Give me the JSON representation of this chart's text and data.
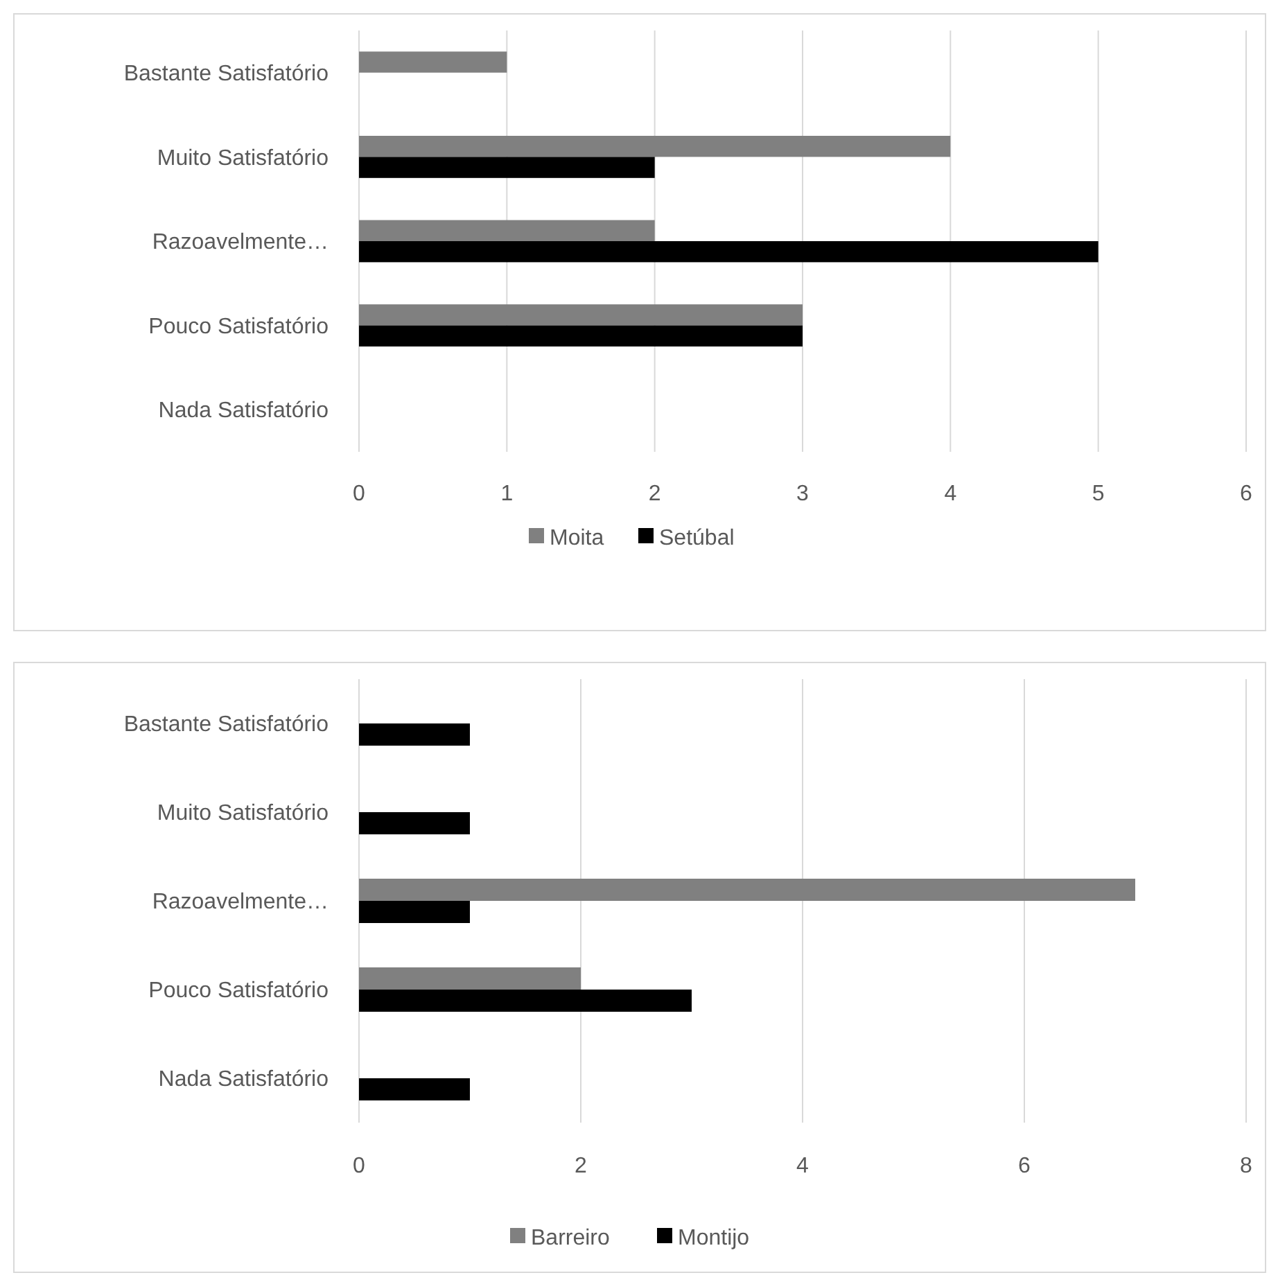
{
  "chart_data": [
    {
      "type": "bar",
      "orientation": "horizontal",
      "categories": [
        "Bastante Satisfatório",
        "Muito Satisfatório",
        "Razoavelmente…",
        "Pouco Satisfatório",
        "Nada Satisfatório"
      ],
      "series": [
        {
          "name": "Moita",
          "color": "#808080",
          "values": [
            1,
            4,
            2,
            3,
            0
          ]
        },
        {
          "name": "Setúbal",
          "color": "#000000",
          "values": [
            0,
            2,
            5,
            3,
            0
          ]
        }
      ],
      "xlim": [
        0,
        6
      ],
      "xticks": [
        0,
        1,
        2,
        3,
        4,
        5,
        6
      ],
      "grid": "x",
      "legend": "bottom"
    },
    {
      "type": "bar",
      "orientation": "horizontal",
      "categories": [
        "Bastante Satisfatório",
        "Muito Satisfatório",
        "Razoavelmente…",
        "Pouco Satisfatório",
        "Nada Satisfatório"
      ],
      "series": [
        {
          "name": "Barreiro",
          "color": "#808080",
          "values": [
            0,
            0,
            7,
            2,
            0
          ]
        },
        {
          "name": "Montijo",
          "color": "#000000",
          "values": [
            1,
            1,
            1,
            3,
            1
          ]
        }
      ],
      "xlim": [
        0,
        8
      ],
      "xticks": [
        0,
        2,
        4,
        6,
        8
      ],
      "grid": "x",
      "legend": "bottom"
    }
  ]
}
